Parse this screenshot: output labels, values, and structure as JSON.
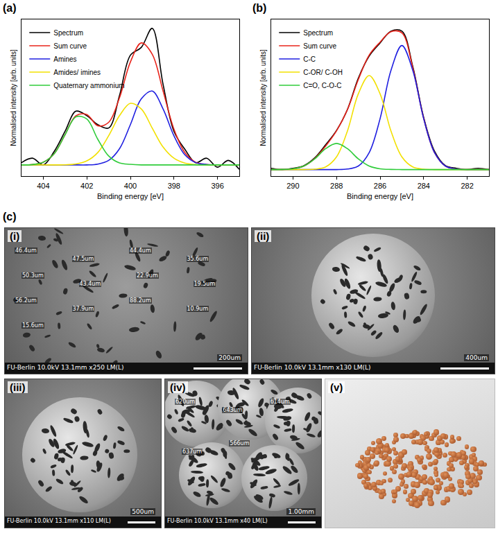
{
  "chart_data": [
    {
      "type": "line",
      "title": "(a)",
      "xlabel": "Binding energy [eV]",
      "ylabel": "Normalised intensity [arb. units]",
      "x": [
        405,
        404.5,
        404,
        403.5,
        403,
        402.5,
        402,
        401.5,
        401,
        400.5,
        400,
        399.5,
        399,
        398.5,
        398,
        397.5,
        397,
        396.5,
        396,
        395.5,
        395
      ],
      "series": [
        {
          "name": "Spectrum",
          "color": "#000000",
          "values": [
            0.02,
            0.06,
            0.0,
            0.12,
            0.3,
            0.48,
            0.44,
            0.36,
            0.33,
            0.62,
            0.98,
            1.05,
            1.22,
            0.72,
            0.3,
            0.14,
            0.02,
            0.06,
            -0.02,
            0.04,
            -0.04
          ]
        },
        {
          "name": "Sum curve",
          "color": "#e8231a",
          "values": [
            0,
            0.003,
            0.024,
            0.1,
            0.27,
            0.44,
            0.45,
            0.35,
            0.38,
            0.6,
            0.92,
            1.09,
            0.99,
            0.66,
            0.32,
            0.11,
            0.023,
            0.004,
            0,
            0,
            0
          ]
        },
        {
          "name": "Amines",
          "color": "#1f1fe0",
          "values": [
            0,
            0,
            0,
            0,
            0,
            0,
            0,
            0.007,
            0.04,
            0.145,
            0.36,
            0.59,
            0.66,
            0.5,
            0.26,
            0.09,
            0.02,
            0.004,
            0,
            0,
            0
          ]
        },
        {
          "name": "Amides/ imines",
          "color": "#f2e000",
          "values": [
            0,
            0,
            0,
            0,
            0.001,
            0.008,
            0.036,
            0.11,
            0.26,
            0.44,
            0.55,
            0.5,
            0.33,
            0.16,
            0.06,
            0.016,
            0.003,
            0,
            0,
            0,
            0
          ]
        },
        {
          "name": "Quaternary ammonium",
          "color": "#2fcc3a",
          "values": [
            0,
            0.003,
            0.024,
            0.1,
            0.27,
            0.43,
            0.41,
            0.23,
            0.08,
            0.017,
            0.005,
            0,
            0,
            0,
            0,
            0,
            0,
            0,
            0,
            0,
            0
          ]
        }
      ],
      "xlim": [
        405,
        395
      ],
      "xticks": [
        404,
        402,
        400,
        398,
        396
      ],
      "ylim": [
        -0.1,
        1.3
      ],
      "tick_labels": "x",
      "grid": false,
      "legend": "top-left"
    },
    {
      "type": "line",
      "title": "(b)",
      "xlabel": "Binding energy [eV]",
      "ylabel": "Normalised intensity [arb. units]",
      "x": [
        291,
        290.5,
        290,
        289.5,
        289,
        288.5,
        288,
        287.5,
        287,
        286.5,
        286,
        285.5,
        285,
        284.5,
        284,
        283.5,
        283,
        282.5,
        282,
        281.5,
        281
      ],
      "series": [
        {
          "name": "Spectrum",
          "color": "#000000",
          "values": [
            0.01,
            0.0,
            0.01,
            0.03,
            0.09,
            0.19,
            0.3,
            0.46,
            0.7,
            0.87,
            0.97,
            1.06,
            1.06,
            0.79,
            0.4,
            0.14,
            0.03,
            0.01,
            0.0,
            0.01,
            0.0
          ]
        },
        {
          "name": "Sum curve",
          "color": "#e8231a",
          "values": [
            0,
            0.001,
            0.006,
            0.027,
            0.085,
            0.18,
            0.297,
            0.459,
            0.689,
            0.877,
            0.976,
            1.056,
            1.047,
            0.78,
            0.393,
            0.13,
            0.027,
            0.004,
            0,
            0,
            0
          ]
        },
        {
          "name": "C-C",
          "color": "#1f1fe0",
          "values": [
            0,
            0,
            0,
            0,
            0,
            0,
            0,
            0.004,
            0.027,
            0.13,
            0.39,
            0.76,
            0.95,
            0.76,
            0.39,
            0.13,
            0.027,
            0.004,
            0,
            0,
            0
          ]
        },
        {
          "name": "C-OR/ C-OH",
          "color": "#f2e000",
          "values": [
            0,
            0,
            0,
            0,
            0.003,
            0.02,
            0.097,
            0.295,
            0.58,
            0.72,
            0.58,
            0.295,
            0.097,
            0.02,
            0.003,
            0,
            0,
            0,
            0,
            0,
            0
          ]
        },
        {
          "name": "C=O, C-O-C",
          "color": "#2fcc3a",
          "values": [
            0,
            0.001,
            0.006,
            0.027,
            0.082,
            0.16,
            0.2,
            0.16,
            0.082,
            0.027,
            0.006,
            0.001,
            0,
            0,
            0,
            0,
            0,
            0,
            0,
            0,
            0
          ]
        }
      ],
      "xlim": [
        291,
        281
      ],
      "xticks": [
        290,
        288,
        286,
        284,
        282
      ],
      "ylim": [
        -0.05,
        1.15
      ],
      "tick_labels": "x",
      "grid": false,
      "legend": "top-left"
    }
  ],
  "image_panel": {
    "label": "(c)",
    "images": [
      {
        "label": "(i)",
        "info": "FU-Berlin 10.0kV 13.1mm x250 LM(L)",
        "scale_bar": "200um",
        "measurements": [
          "46.4um",
          "47.5um",
          "44.4um",
          "35.6um",
          "50.3um",
          "43.4um",
          "22.9um",
          "19.5um",
          "56.2um",
          "37.9um",
          "88.2um",
          "10.9um",
          "15.6um"
        ]
      },
      {
        "label": "(ii)",
        "info": "FU-Berlin 10.0kV 13.1mm x130 LM(L)",
        "scale_bar": "400um"
      },
      {
        "label": "(iii)",
        "info": "FU-Berlin 10.0kV 13.1mm x110 LM(L)",
        "scale_bar": "500um"
      },
      {
        "label": "(iv)",
        "info": "FU-Berlin 10.0kV 13.1mm x40 LM(L)",
        "scale_bar": "1.00mm",
        "measurements": [
          "620um",
          "643um",
          "614um",
          "637um",
          "566um"
        ]
      },
      {
        "label": "(v)"
      }
    ]
  }
}
